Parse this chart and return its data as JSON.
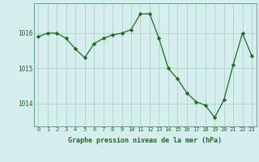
{
  "x": [
    0,
    1,
    2,
    3,
    4,
    5,
    6,
    7,
    8,
    9,
    10,
    11,
    12,
    13,
    14,
    15,
    16,
    17,
    18,
    19,
    20,
    21,
    22,
    23
  ],
  "y": [
    1015.9,
    1016.0,
    1016.0,
    1015.85,
    1015.55,
    1015.3,
    1015.7,
    1015.85,
    1015.95,
    1016.0,
    1016.1,
    1016.55,
    1016.55,
    1015.85,
    1015.0,
    1014.7,
    1014.3,
    1014.05,
    1013.95,
    1013.6,
    1014.1,
    1015.1,
    1016.0,
    1015.35
  ],
  "ylim": [
    1013.35,
    1016.85
  ],
  "yticks": [
    1014,
    1015,
    1016
  ],
  "xlabel": "Graphe pression niveau de la mer (hPa)",
  "background_color": "#d5eeed",
  "line_color": "#1f6b1f",
  "marker_color": "#1f6b1f",
  "grid_color": "#a8d5cc",
  "axis_color": "#6aa08a",
  "tick_color": "#1f6b1f",
  "label_color": "#1f6b1f",
  "tick_fontsize": 5.0,
  "label_fontsize": 6.0,
  "linewidth": 0.9,
  "markersize": 2.2
}
